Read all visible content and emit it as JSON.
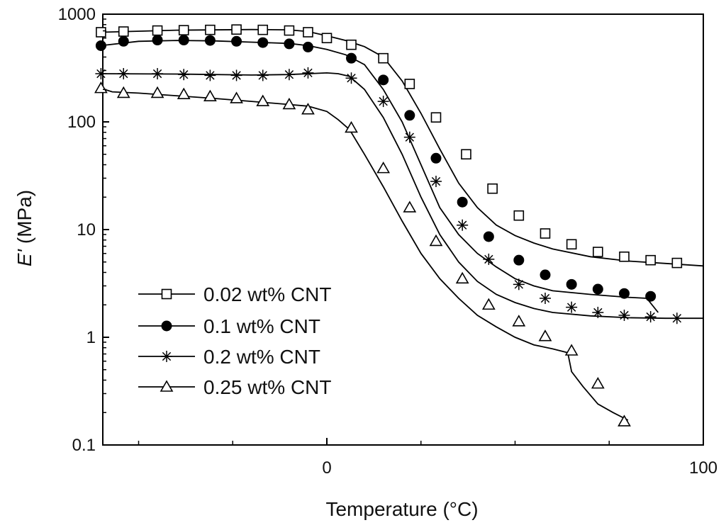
{
  "chart_data": {
    "type": "line",
    "xlabel": "Temperature (°C)",
    "ylabel_symbol": "E'",
    "ylabel_unit": "(MPa)",
    "xscale": "linear",
    "yscale": "log",
    "xlim": [
      -60,
      100
    ],
    "ylim": [
      0.1,
      1000
    ],
    "x_ticks": [
      0,
      100
    ],
    "x_tick_labels": [
      "0",
      "100"
    ],
    "x_minor_ticks": [
      -50,
      -25,
      25,
      50,
      75
    ],
    "y_ticks": [
      0.1,
      1,
      10,
      100,
      1000
    ],
    "y_tick_labels": [
      "0.1",
      "1",
      "10",
      "100",
      "1000"
    ],
    "grid": false,
    "legend_position": "bottom-left",
    "series": [
      {
        "name": "0.02 wt% CNT",
        "marker": "open-square",
        "color": "#000000",
        "curve": [
          [
            -60,
            680
          ],
          [
            -40,
            710
          ],
          [
            -20,
            720
          ],
          [
            -10,
            715
          ],
          [
            -5,
            690
          ],
          [
            0,
            630
          ],
          [
            5,
            570
          ],
          [
            10,
            500
          ],
          [
            15,
            400
          ],
          [
            20,
            240
          ],
          [
            25,
            120
          ],
          [
            30,
            56
          ],
          [
            35,
            27
          ],
          [
            40,
            16
          ],
          [
            45,
            11
          ],
          [
            50,
            8.8
          ],
          [
            55,
            7.5
          ],
          [
            60,
            6.6
          ],
          [
            70,
            5.6
          ],
          [
            80,
            5.1
          ],
          [
            90,
            4.85
          ],
          [
            100,
            4.6
          ]
        ],
        "markers": [
          [
            -60,
            680
          ],
          [
            -54,
            690
          ],
          [
            -45,
            705
          ],
          [
            -38,
            710
          ],
          [
            -31,
            715
          ],
          [
            -24,
            720
          ],
          [
            -17,
            715
          ],
          [
            -10,
            705
          ],
          [
            -5,
            680
          ],
          [
            0,
            600
          ],
          [
            6.5,
            520
          ],
          [
            15,
            390
          ],
          [
            22,
            225
          ],
          [
            29,
            110
          ],
          [
            37,
            50
          ],
          [
            44,
            24
          ],
          [
            51,
            13.5
          ],
          [
            58,
            9.2
          ],
          [
            65,
            7.3
          ],
          [
            72,
            6.2
          ],
          [
            79,
            5.6
          ],
          [
            86,
            5.2
          ],
          [
            93,
            4.9
          ]
        ]
      },
      {
        "name": "0.1 wt% CNT",
        "marker": "filled-circle",
        "color": "#000000",
        "curve": [
          [
            -60,
            510
          ],
          [
            -50,
            560
          ],
          [
            -40,
            570
          ],
          [
            -30,
            565
          ],
          [
            -20,
            550
          ],
          [
            -10,
            535
          ],
          [
            -5,
            510
          ],
          [
            0,
            470
          ],
          [
            5,
            420
          ],
          [
            10,
            340
          ],
          [
            15,
            200
          ],
          [
            20,
            100
          ],
          [
            25,
            40
          ],
          [
            30,
            16
          ],
          [
            35,
            9
          ],
          [
            40,
            6
          ],
          [
            45,
            4.5
          ],
          [
            50,
            3.5
          ],
          [
            55,
            3.0
          ],
          [
            60,
            2.7
          ],
          [
            70,
            2.5
          ],
          [
            80,
            2.35
          ],
          [
            85,
            2.3
          ],
          [
            88,
            1.7
          ]
        ],
        "markers": [
          [
            -60,
            510
          ],
          [
            -54,
            560
          ],
          [
            -45,
            575
          ],
          [
            -38,
            575
          ],
          [
            -31,
            570
          ],
          [
            -24,
            560
          ],
          [
            -17,
            545
          ],
          [
            -10,
            530
          ],
          [
            -5,
            495
          ],
          [
            6.5,
            390
          ],
          [
            15,
            245
          ],
          [
            22,
            115
          ],
          [
            29,
            46
          ],
          [
            36,
            18
          ],
          [
            43,
            8.6
          ],
          [
            51,
            5.2
          ],
          [
            58,
            3.8
          ],
          [
            65,
            3.1
          ],
          [
            72,
            2.8
          ],
          [
            79,
            2.55
          ],
          [
            86,
            2.4
          ]
        ]
      },
      {
        "name": "0.2 wt% CNT",
        "marker": "asterisk",
        "color": "#000000",
        "curve": [
          [
            -60,
            280
          ],
          [
            -40,
            278
          ],
          [
            -20,
            272
          ],
          [
            -10,
            275
          ],
          [
            0,
            285
          ],
          [
            3,
            280
          ],
          [
            6,
            265
          ],
          [
            10,
            200
          ],
          [
            15,
            110
          ],
          [
            20,
            50
          ],
          [
            25,
            20
          ],
          [
            30,
            9
          ],
          [
            35,
            5
          ],
          [
            40,
            3.3
          ],
          [
            45,
            2.5
          ],
          [
            50,
            2.1
          ],
          [
            55,
            1.85
          ],
          [
            60,
            1.7
          ],
          [
            70,
            1.58
          ],
          [
            80,
            1.52
          ],
          [
            90,
            1.5
          ],
          [
            100,
            1.5
          ]
        ],
        "markers": [
          [
            -60,
            280
          ],
          [
            -54,
            280
          ],
          [
            -45,
            280
          ],
          [
            -38,
            275
          ],
          [
            -31,
            270
          ],
          [
            -24,
            270
          ],
          [
            -17,
            270
          ],
          [
            -10,
            275
          ],
          [
            -5,
            285
          ],
          [
            6.5,
            255
          ],
          [
            15,
            155
          ],
          [
            22,
            72
          ],
          [
            29,
            28
          ],
          [
            36,
            11
          ],
          [
            43,
            5.3
          ],
          [
            51,
            3.1
          ],
          [
            58,
            2.3
          ],
          [
            65,
            1.9
          ],
          [
            72,
            1.7
          ],
          [
            79,
            1.6
          ],
          [
            86,
            1.55
          ],
          [
            93,
            1.5
          ]
        ]
      },
      {
        "name": "0.25 wt% CNT",
        "marker": "open-triangle",
        "color": "#000000",
        "curve": [
          [
            -60,
            205
          ],
          [
            -57,
            190
          ],
          [
            -50,
            185
          ],
          [
            -40,
            175
          ],
          [
            -30,
            165
          ],
          [
            -20,
            155
          ],
          [
            -10,
            145
          ],
          [
            -5,
            140
          ],
          [
            0,
            125
          ],
          [
            3,
            105
          ],
          [
            6,
            85
          ],
          [
            10,
            50
          ],
          [
            15,
            25
          ],
          [
            20,
            12
          ],
          [
            25,
            6
          ],
          [
            30,
            3.5
          ],
          [
            35,
            2.3
          ],
          [
            40,
            1.6
          ],
          [
            45,
            1.25
          ],
          [
            50,
            1.0
          ],
          [
            55,
            0.85
          ],
          [
            60,
            0.78
          ],
          [
            64,
            0.72
          ],
          [
            65,
            0.48
          ],
          [
            68,
            0.35
          ],
          [
            72,
            0.24
          ],
          [
            76,
            0.2
          ],
          [
            80,
            0.17
          ]
        ],
        "markers": [
          [
            -60,
            205
          ],
          [
            -54,
            185
          ],
          [
            -45,
            185
          ],
          [
            -38,
            180
          ],
          [
            -31,
            172
          ],
          [
            -24,
            165
          ],
          [
            -17,
            155
          ],
          [
            -10,
            145
          ],
          [
            -5,
            130
          ],
          [
            6.5,
            88
          ],
          [
            15,
            37
          ],
          [
            22,
            16
          ],
          [
            29,
            7.8
          ],
          [
            36,
            3.5
          ],
          [
            43,
            2.0
          ],
          [
            51,
            1.4
          ],
          [
            58,
            1.02
          ],
          [
            65,
            0.75
          ],
          [
            72,
            0.37
          ],
          [
            79,
            0.165
          ]
        ]
      }
    ]
  }
}
